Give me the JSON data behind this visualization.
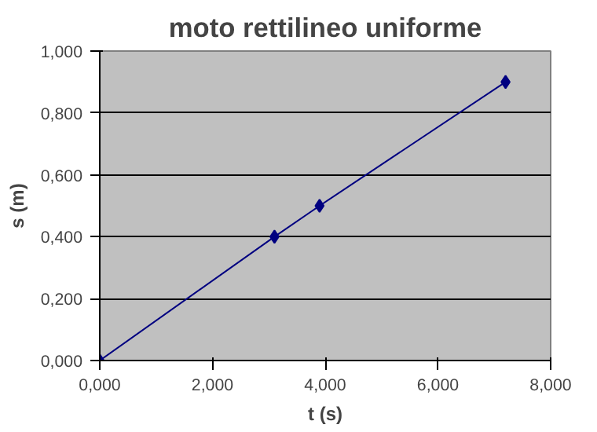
{
  "chart_data": {
    "type": "line",
    "title": "moto rettilineo uniforme",
    "xlabel": "t (s)",
    "ylabel": "s (m)",
    "x": [
      0,
      3.1,
      3.9,
      7.2
    ],
    "series": [
      {
        "color": "#000080",
        "values": [
          0,
          0.4,
          0.5,
          0.9
        ]
      }
    ],
    "xlim": [
      0,
      8
    ],
    "ylim": [
      0,
      1
    ],
    "xticks": [
      {
        "value": 0,
        "label": "0,000"
      },
      {
        "value": 2,
        "label": "2,000"
      },
      {
        "value": 4,
        "label": "4,000"
      },
      {
        "value": 6,
        "label": "6,000"
      },
      {
        "value": 8,
        "label": "8,000"
      }
    ],
    "yticks": [
      {
        "value": 0,
        "label": "0,000"
      },
      {
        "value": 0.2,
        "label": "0,200"
      },
      {
        "value": 0.4,
        "label": "0,400"
      },
      {
        "value": 0.6,
        "label": "0,600"
      },
      {
        "value": 0.8,
        "label": "0,800"
      },
      {
        "value": 1,
        "label": "1,000"
      }
    ],
    "grid": "y",
    "marker": "diamond",
    "line_style": "solid"
  }
}
